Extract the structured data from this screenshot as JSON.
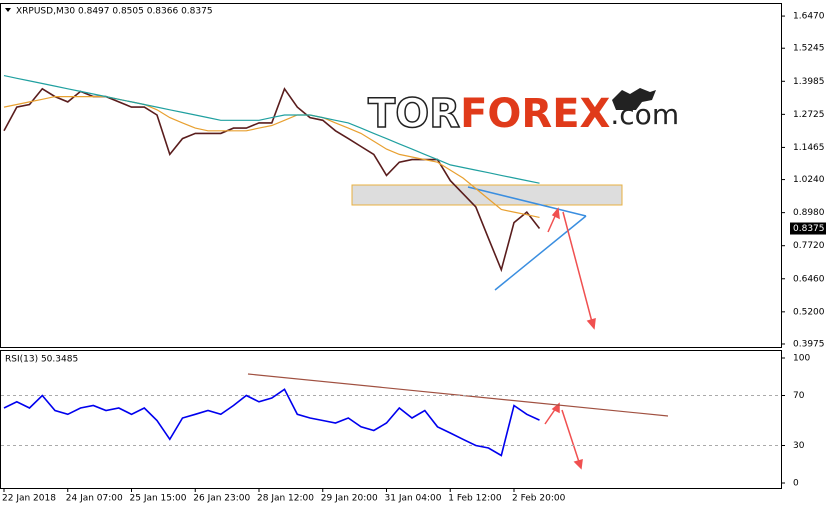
{
  "chart_data": [
    {
      "type": "line",
      "title": "XRPUSD,M30  0.8497 0.8505 0.8366 0.8375",
      "watermark": [
        "TOR",
        "FOREX",
        ".com"
      ],
      "categories": [
        "22 Jan 2018",
        null,
        null,
        null,
        null,
        "24 Jan 07:00",
        null,
        null,
        null,
        null,
        "25 Jan 15:00",
        null,
        null,
        null,
        null,
        "26 Jan 23:00",
        null,
        null,
        null,
        null,
        "28 Jan 12:00",
        null,
        null,
        null,
        null,
        "29 Jan 20:00",
        null,
        null,
        null,
        null,
        "31 Jan 04:00",
        null,
        null,
        null,
        null,
        "1 Feb 12:00",
        null,
        null,
        null,
        null,
        "2 Feb 20:00",
        null,
        null
      ],
      "series": [
        {
          "color": "#5a1d1d",
          "values": [
            1.21,
            1.3,
            1.31,
            1.37,
            1.34,
            1.32,
            1.36,
            1.34,
            1.34,
            1.32,
            1.3,
            1.3,
            1.27,
            1.12,
            1.18,
            1.2,
            1.2,
            1.2,
            1.22,
            1.22,
            1.24,
            1.24,
            1.37,
            1.3,
            1.26,
            1.25,
            1.21,
            1.18,
            1.15,
            1.12,
            1.04,
            1.09,
            1.1,
            1.1,
            1.1,
            1.02,
            0.97,
            0.92,
            0.8,
            0.68,
            0.86,
            0.9,
            0.8375
          ],
          "value_labels": [
            null,
            null,
            null,
            null,
            null,
            null,
            null,
            null,
            null,
            null,
            null,
            null,
            null,
            null,
            null,
            null,
            null,
            null,
            null,
            null,
            null,
            null,
            null,
            null,
            null,
            null,
            null,
            null,
            null,
            null,
            null,
            null,
            null,
            null,
            null,
            null,
            null,
            null,
            null,
            null,
            null,
            null,
            "0.8375"
          ]
        },
        {
          "color": "#e8a030",
          "values": [
            1.3,
            1.31,
            1.32,
            1.33,
            1.34,
            1.34,
            1.34,
            1.34,
            1.34,
            1.33,
            1.32,
            1.31,
            1.29,
            1.26,
            1.24,
            1.22,
            1.21,
            1.21,
            1.21,
            1.21,
            1.22,
            1.23,
            1.25,
            1.27,
            1.27,
            1.26,
            1.24,
            1.22,
            1.2,
            1.17,
            1.14,
            1.12,
            1.11,
            1.1,
            1.09,
            1.06,
            1.03,
            0.99,
            0.95,
            0.91,
            0.9,
            0.89,
            0.88
          ]
        },
        {
          "color": "#20a0a0",
          "values": [
            1.42,
            1.41,
            1.4,
            1.39,
            1.38,
            1.37,
            1.36,
            1.35,
            1.34,
            1.33,
            1.32,
            1.31,
            1.3,
            1.29,
            1.28,
            1.27,
            1.26,
            1.25,
            1.25,
            1.25,
            1.25,
            1.26,
            1.27,
            1.27,
            1.27,
            1.26,
            1.25,
            1.24,
            1.22,
            1.2,
            1.18,
            1.16,
            1.14,
            1.12,
            1.1,
            1.08,
            1.07,
            1.06,
            1.05,
            1.04,
            1.03,
            1.02,
            1.01
          ]
        }
      ],
      "ylim": [
        0.386,
        1.693
      ],
      "yticks": [
        {
          "value": 1.647,
          "label": "1.6470"
        },
        {
          "value": 1.5245,
          "label": "1.5245"
        },
        {
          "value": 1.3985,
          "label": "1.3985"
        },
        {
          "value": 1.2725,
          "label": "1.2725"
        },
        {
          "value": 1.1465,
          "label": "1.1465"
        },
        {
          "value": 1.024,
          "label": "1.0240"
        },
        {
          "value": 0.898,
          "label": "0.8980"
        },
        {
          "value": 0.772,
          "label": "0.7720"
        },
        {
          "value": 0.646,
          "label": "0.6460"
        },
        {
          "value": 0.52,
          "label": "0.5200"
        },
        {
          "value": 0.3975,
          "label": "0.3975"
        }
      ]
    },
    {
      "type": "line",
      "title": "RSI(13) 50.3485",
      "series": [
        {
          "color": "#0000ee",
          "values": [
            60,
            65,
            60,
            70,
            58,
            55,
            60,
            62,
            58,
            60,
            55,
            60,
            50,
            35,
            52,
            55,
            58,
            55,
            62,
            70,
            65,
            68,
            75,
            55,
            52,
            50,
            48,
            52,
            45,
            42,
            48,
            60,
            52,
            58,
            45,
            40,
            35,
            30,
            28,
            22,
            62,
            55,
            50.3485
          ]
        }
      ],
      "ylim": [
        -4,
        105.6
      ],
      "yticks": [
        100,
        70,
        30,
        0
      ],
      "grid": [
        70,
        30
      ]
    }
  ]
}
